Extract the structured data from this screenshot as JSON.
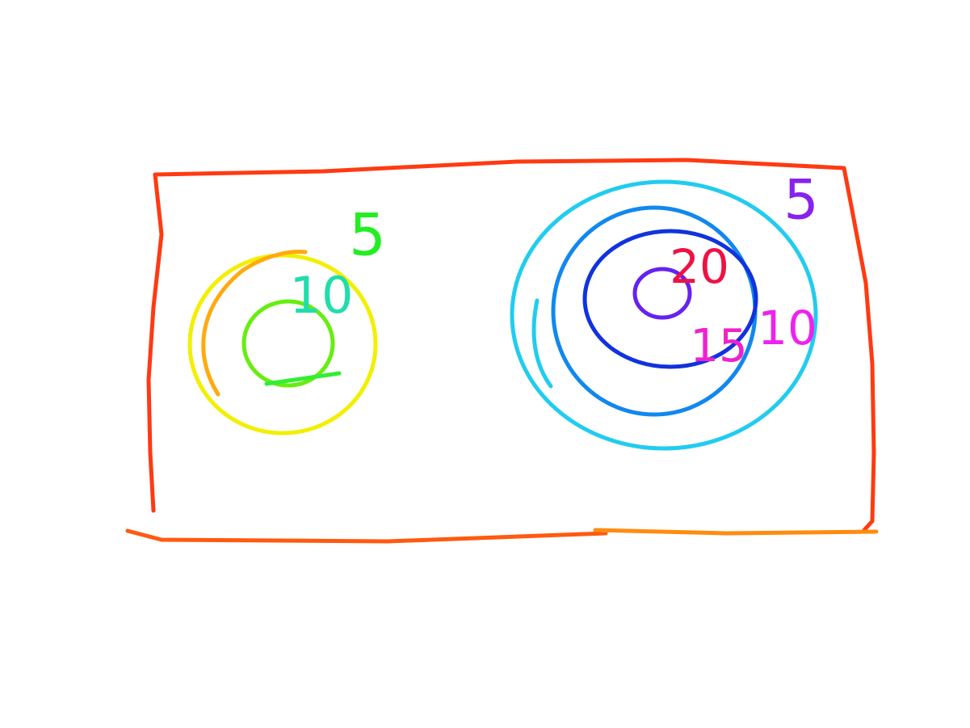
{
  "left": {
    "labels": [
      "5",
      "10"
    ]
  },
  "right": {
    "labels": [
      "5",
      "20",
      "15",
      "10"
    ]
  }
}
